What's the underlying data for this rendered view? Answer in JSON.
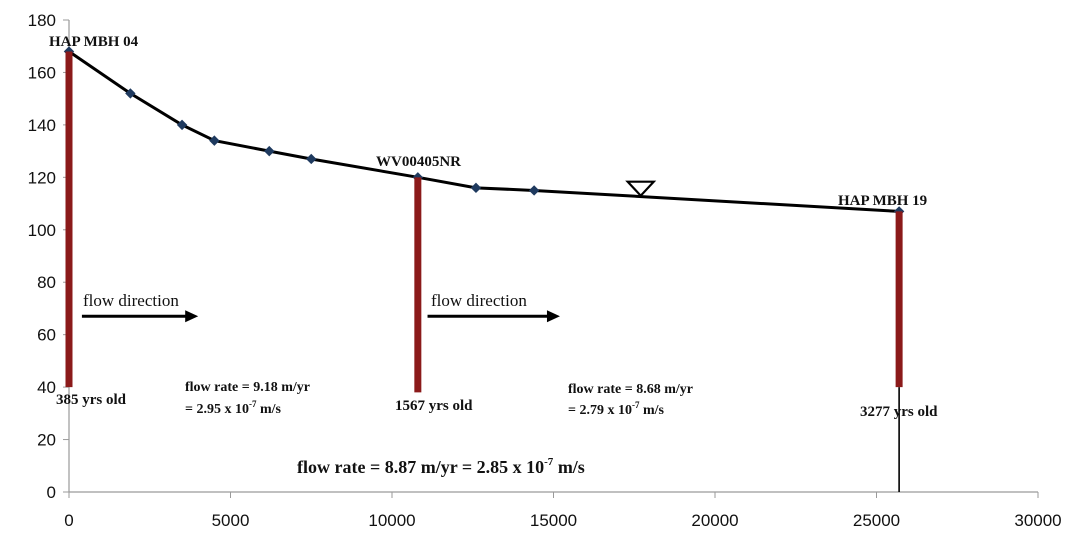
{
  "chart_data": {
    "type": "line",
    "xlim": [
      0,
      30000
    ],
    "ylim": [
      0,
      180
    ],
    "x_ticks": [
      0,
      5000,
      10000,
      15000,
      20000,
      25000,
      30000
    ],
    "y_ticks": [
      0,
      20,
      40,
      60,
      80,
      100,
      120,
      140,
      160,
      180
    ],
    "grid": false,
    "series": [
      {
        "x": [
          0,
          1900,
          3500,
          4500,
          6200,
          7500,
          10800,
          12600,
          14400,
          25700
        ],
        "y": [
          168,
          152,
          140,
          134,
          130,
          127,
          120,
          116,
          115,
          107
        ]
      }
    ],
    "wells": [
      {
        "name": "HAP MBH 04",
        "x": 0,
        "top": 168,
        "bottom": 40,
        "age": "385 yrs old"
      },
      {
        "name": "WV00405NR",
        "x": 10800,
        "top": 120,
        "bottom": 38,
        "age": "1567 yrs old"
      },
      {
        "name": "HAP MBH 19",
        "x": 25700,
        "top": 107,
        "bottom": 40,
        "age": "3277 yrs old",
        "extends_to": 0
      }
    ],
    "water_table_marker": {
      "x": 17700,
      "y": 113
    },
    "arrows": [
      {
        "label": "flow direction",
        "x_start": 400,
        "x_end": 4000,
        "y": 67
      },
      {
        "label": "flow direction",
        "x_start": 11100,
        "x_end": 15200,
        "y": 67
      }
    ],
    "annotations": [
      {
        "line1": "flow rate = 9.18 m/yr",
        "line2_prefix": "= 2.95 x 10",
        "line2_exp": "-7",
        "line2_suffix": " m/s"
      },
      {
        "line1": "flow rate = 8.68 m/yr",
        "line2_prefix": "= 2.79 x 10",
        "line2_exp": "-7",
        "line2_suffix": " m/s"
      }
    ],
    "overall": {
      "prefix": "flow rate = 8.87 m/yr = 2.85 x 10",
      "exp": "-7",
      "suffix": " m/s"
    }
  },
  "colors": {
    "well": "#8b1a1a",
    "line": "#000000",
    "axis": "#9a9a9a"
  }
}
